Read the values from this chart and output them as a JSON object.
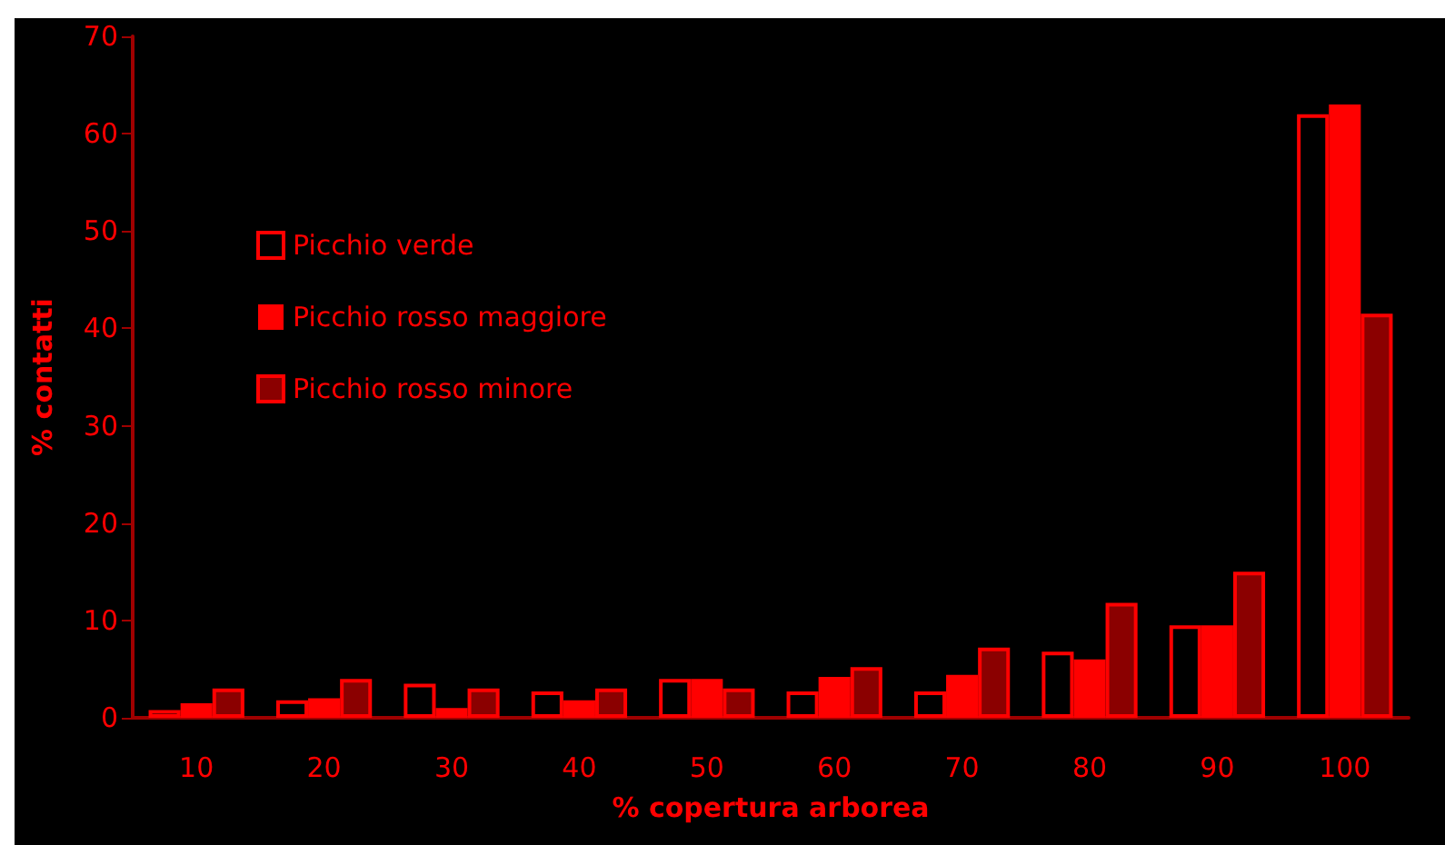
{
  "chart_data": {
    "type": "bar",
    "xlabel": "% copertura arborea",
    "ylabel": "% contatti",
    "categories": [
      "10",
      "20",
      "30",
      "40",
      "50",
      "60",
      "70",
      "80",
      "90",
      "100"
    ],
    "series": [
      {
        "name": "Picchio verde",
        "color": "#ff0000",
        "values": [
          0.8,
          1.8,
          3.5,
          2.7,
          4,
          2.7,
          2.7,
          6.8,
          9.5,
          62
        ]
      },
      {
        "name": "Picchio rosso maggiore",
        "color": "#ff0000",
        "values": [
          1.5,
          2,
          1,
          1.8,
          4,
          4.2,
          4.4,
          6,
          9.5,
          63
        ]
      },
      {
        "name": "Picchio rosso minore",
        "color": "#8b0000",
        "values": [
          3,
          4,
          3,
          3,
          3,
          5.2,
          7.2,
          11.8,
          15,
          41.5
        ]
      }
    ],
    "ylim": [
      0,
      70
    ],
    "yticks": [
      0,
      10,
      20,
      30,
      40,
      50,
      60,
      70
    ],
    "grid": false,
    "legend": "top left"
  }
}
